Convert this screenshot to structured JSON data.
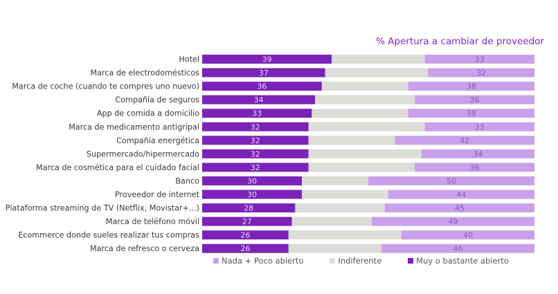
{
  "chart_data": {
    "type": "bar",
    "orientation": "horizontal-stacked-100",
    "title": "% Apertura a cambiar de proveedor",
    "categories": [
      "Hotel",
      "Marca de electrodomésticos",
      "Marca de coche (cuando te compres uno nuevo)",
      "Compañía de seguros",
      "App de comida a domicilio",
      "Marca de medicamento antigripal",
      "Compañía energética",
      "Supermercado/hipermercado",
      "Marca de cosmética para el cuidado facial",
      "Banco",
      "Proveedor de internet",
      "Plataforma streaming de TV (Netflix, Movistar+...)",
      "Marca de teléfono móvil",
      "Ecommerce donde sueles realizar tus compras",
      "Marca de refresco o cerveza"
    ],
    "series": [
      {
        "name": "Muy o bastante abierto",
        "color": "#7b22b8",
        "labeled": true,
        "values": [
          39,
          37,
          36,
          34,
          33,
          32,
          32,
          32,
          32,
          30,
          30,
          28,
          27,
          26,
          26
        ]
      },
      {
        "name": "Indiferente",
        "color": "#dcdcd8",
        "labeled": false,
        "values": [
          28,
          31,
          26,
          30,
          29,
          35,
          26,
          34,
          32,
          20,
          26,
          27,
          24,
          34,
          28
        ]
      },
      {
        "name": "Nada + Poco abierto",
        "color": "#c9a1ea",
        "labeled": true,
        "values": [
          33,
          32,
          38,
          36,
          38,
          33,
          42,
          34,
          36,
          50,
          44,
          45,
          49,
          40,
          46
        ]
      }
    ],
    "legend_order": [
      "Nada + Poco abierto",
      "Indiferente",
      "Muy o bastante abierto"
    ],
    "legend": "bottom",
    "xlim": [
      0,
      100
    ],
    "grid": false
  }
}
